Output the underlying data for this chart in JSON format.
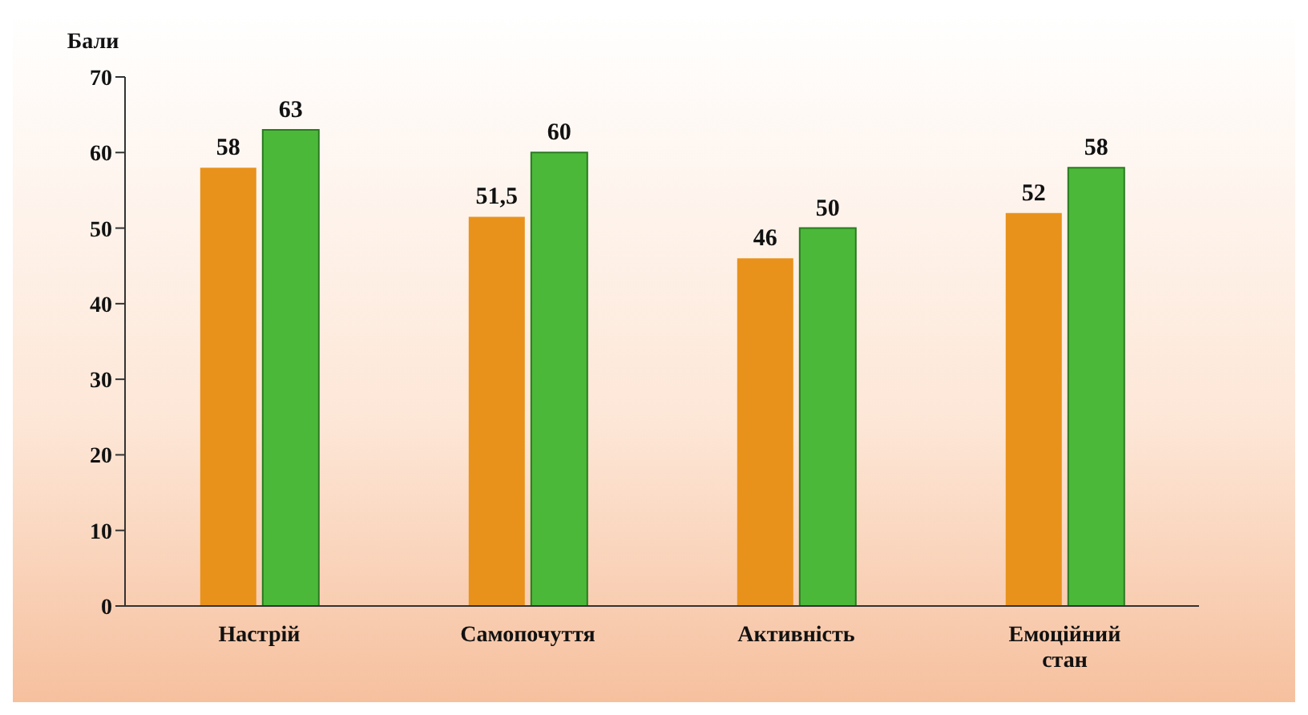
{
  "chart_data": {
    "type": "bar",
    "ylabel": "Бали",
    "categories": [
      "Настрій",
      "Самопочуття",
      "Активність",
      "Емоційний стан"
    ],
    "series": [
      {
        "color": "#e8921c",
        "values": [
          58,
          51.5,
          46,
          52
        ],
        "value_labels": [
          "58",
          "51,5",
          "46",
          "52"
        ]
      },
      {
        "color": "#4cb83a",
        "values": [
          63,
          60,
          50,
          58
        ],
        "value_labels": [
          "63",
          "60",
          "50",
          "58"
        ]
      }
    ],
    "ylim": [
      0,
      70
    ],
    "yticks": [
      0,
      10,
      20,
      30,
      40,
      50,
      60,
      70
    ],
    "grid": false,
    "legend": false
  }
}
